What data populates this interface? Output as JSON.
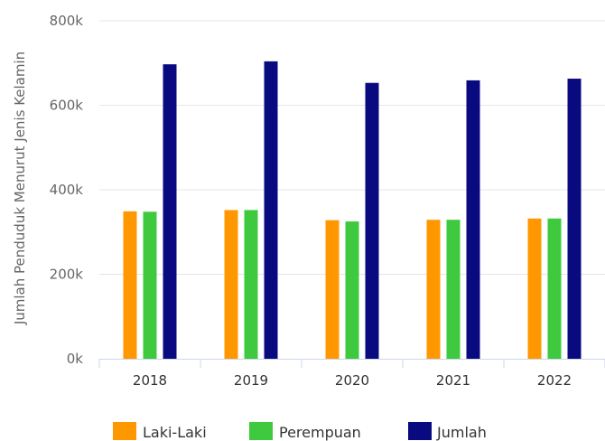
{
  "chart_data": {
    "type": "bar",
    "title": "",
    "ylabel": "Jumlah Penduduk Menurut Jenis Kelamin",
    "categories": [
      "2018",
      "2019",
      "2020",
      "2021",
      "2022"
    ],
    "ylim": [
      0,
      800000
    ],
    "yticks": [
      {
        "value": 0,
        "label": "0k"
      },
      {
        "value": 200000,
        "label": "200k"
      },
      {
        "value": 400000,
        "label": "400k"
      },
      {
        "value": 600000,
        "label": "600k"
      },
      {
        "value": 800000,
        "label": "800k"
      }
    ],
    "grid": true,
    "legend_position": "bottom",
    "series": [
      {
        "name": "Laki-Laki",
        "color": "#ff9800",
        "values": [
          349000,
          352000,
          328000,
          329000,
          332000
        ]
      },
      {
        "name": "Perempuan",
        "color": "#3ec93e",
        "values": [
          348000,
          352000,
          325000,
          329000,
          332000
        ]
      },
      {
        "name": "Jumlah",
        "color": "#0a0a80",
        "values": [
          697000,
          704000,
          653000,
          659000,
          663000
        ]
      }
    ]
  }
}
